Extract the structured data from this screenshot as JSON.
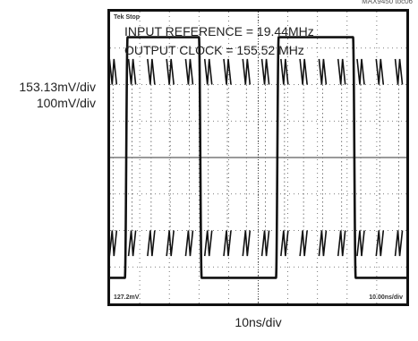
{
  "figure_id": "MAX9450 toc06",
  "annotations": {
    "line1": "INPUT REFERENCE = 19.44MHz",
    "line2": "OUTPUT CLOCK = 155.52 MHz"
  },
  "vertical_scale": {
    "ch1": "153.13mV/div",
    "ch2": "100mV/div"
  },
  "time_scale": "10ns/div",
  "scope_labels": {
    "top_left": "Tek Stop",
    "bottom_left": "127.2mV",
    "bottom_right": "10.00ns/div"
  },
  "colors": {
    "trace": "#111111",
    "grid": "#555555",
    "frame": "#111111"
  },
  "chart_data": {
    "type": "line",
    "title": "",
    "xlabel": "10ns/div",
    "ylabel": "",
    "grid": true,
    "divisions": {
      "x": 10,
      "y": 8
    },
    "xlim": [
      0,
      100
    ],
    "unit_x": "ns",
    "series": [
      {
        "name": "",
        "kind": "square",
        "frequency_mhz": 19.44,
        "period_ns": 51.4,
        "high_div": 3.3,
        "low_div": -3.3,
        "edges_ns": [
          5,
          30,
          56,
          82
        ],
        "first_level": "low"
      },
      {
        "name": "",
        "kind": "pulse-train",
        "frequency_mhz": 155.52,
        "period_ns": 6.43,
        "top_band_div": [
          2.0,
          2.7
        ],
        "bottom_band_div": [
          -2.0,
          -2.7
        ]
      }
    ]
  }
}
